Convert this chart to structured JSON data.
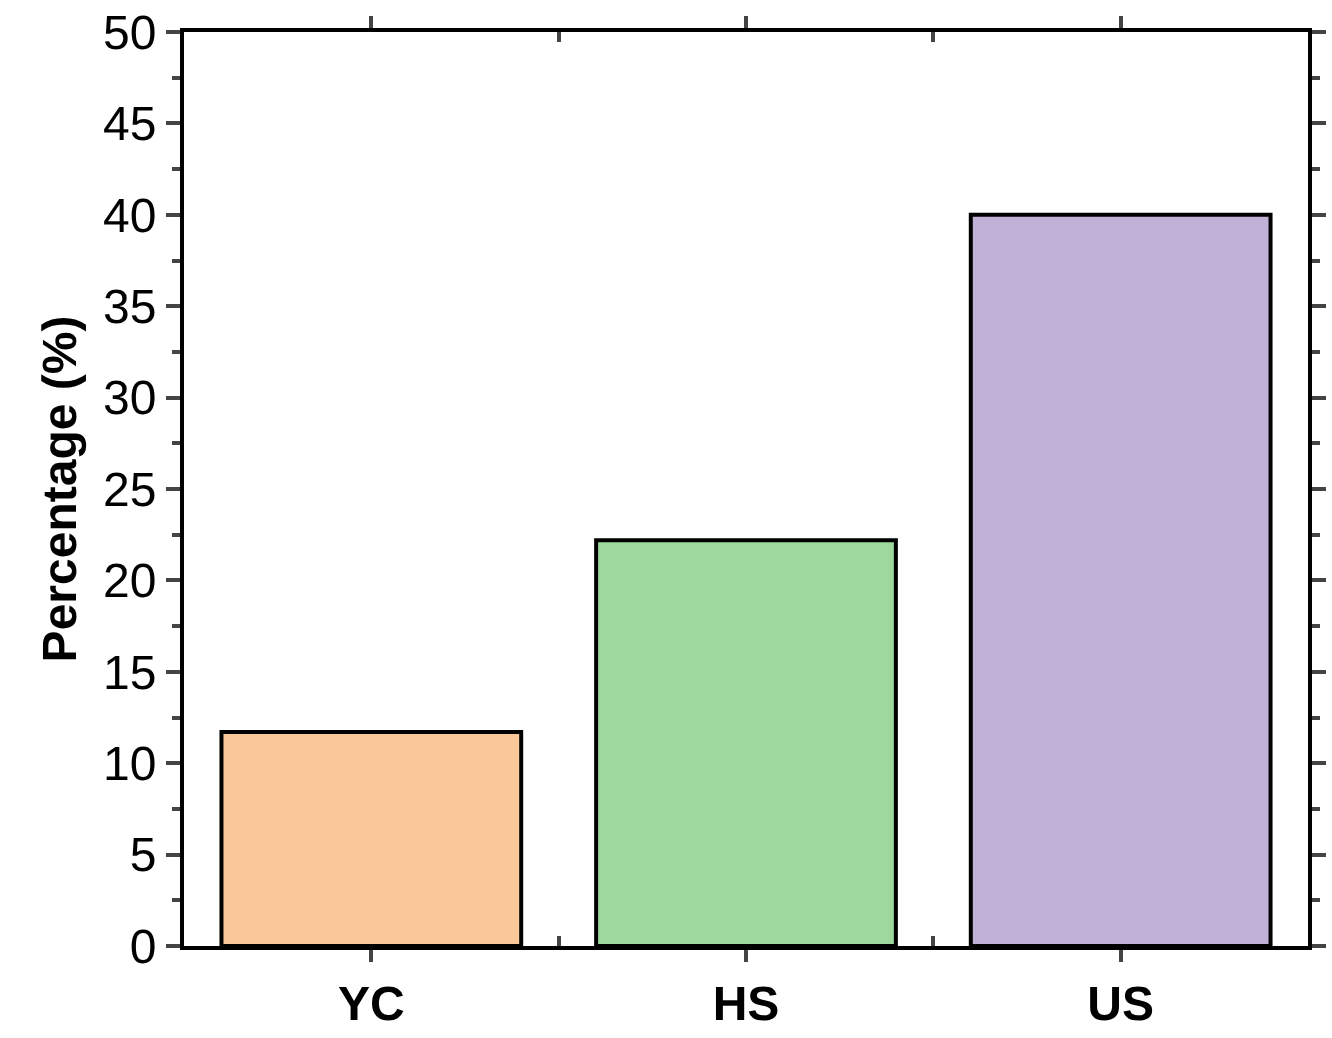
{
  "chart_data": {
    "type": "bar",
    "ylabel": "Percentage (%)",
    "categories": [
      "YC",
      "HS",
      "US"
    ],
    "values": [
      11.7,
      22.2,
      40.0
    ],
    "colors": [
      "#fac898",
      "#9fd89d",
      "#c2b1d6"
    ],
    "ylim": [
      0,
      50
    ],
    "yticks": [
      0,
      5,
      10,
      15,
      20,
      25,
      30,
      35,
      40,
      45,
      50
    ]
  }
}
